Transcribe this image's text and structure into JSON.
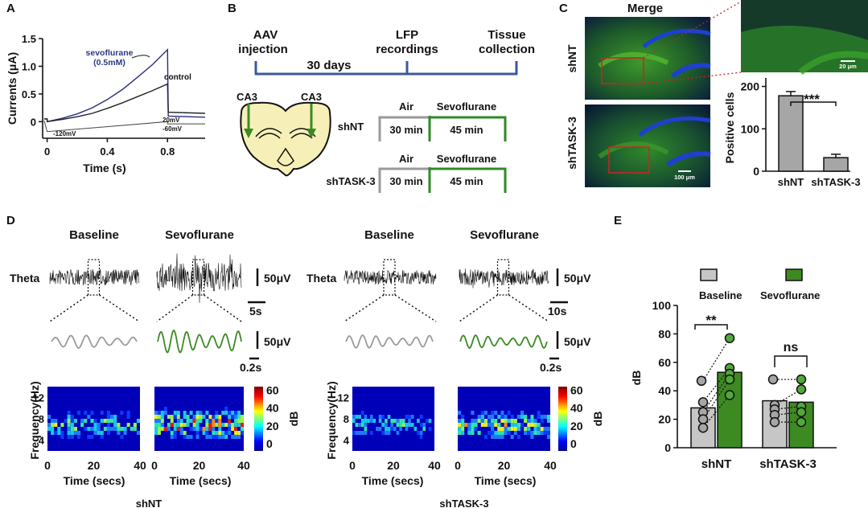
{
  "colors": {
    "baseline_bar": "#c6c6c6",
    "sevo_bar": "#3d8a22",
    "navy": "#2b3a80",
    "sevo_trace": "#2a2d7c",
    "timeline": "#3a5a9a",
    "air_box": "#9a9a9a",
    "sevo_box": "#2f8a25",
    "fluor_green": "#3aa02a",
    "fluor_blue": "#1f3fd0",
    "red_roi": "#d42020",
    "gray_ctrl": "#c0c0c0",
    "cell_bar": "#a6a6a6"
  },
  "panels": {
    "A": {
      "letter": "A",
      "ylabel": "Currents (μA)",
      "xlabel": "Time (s)",
      "yticks": [
        "1.5",
        "1.0",
        "0.5",
        "0"
      ],
      "xticks": [
        "0",
        "0.4",
        "0.8"
      ],
      "sevo_label_1": "sevoflurane",
      "sevo_label_2": "(0.5mM)",
      "control_label": "control",
      "v_hold": "-120mV",
      "v_20": "20mV",
      "v_m60": "-60mV"
    },
    "B": {
      "letter": "B",
      "aav_1": "AAV",
      "aav_2": "injection",
      "lfp_1": "LFP",
      "lfp_2": "recordings",
      "tissue_1": "Tissue",
      "tissue_2": "collection",
      "days": "30 days",
      "ca3_left": "CA3",
      "ca3_right": "CA3",
      "group1": "shNT",
      "group2": "shTASK-3",
      "air": "Air",
      "sevo": "Sevoflurane",
      "air_time": "30 min",
      "sevo_time": "45 min"
    },
    "C": {
      "letter": "C",
      "merge": "Merge",
      "row1": "shNT",
      "row2": "shTASK-3",
      "scale_inset": "20 μm",
      "scale_main": "100 μm",
      "chart_ylabel": "Positive cells",
      "chart_yticks": [
        "200",
        "100",
        "0"
      ],
      "sig": "***"
    },
    "D": {
      "letter": "D",
      "baseline": "Baseline",
      "sevo": "Sevoflurane",
      "theta": "Theta",
      "scale_uv": "50μV",
      "scale_5s": "5s",
      "scale_10s": "10s",
      "scale_02s": "0.2s",
      "freq_ylabel": "Frequency(Hz)",
      "freq_yticks": [
        "12",
        "8",
        "4"
      ],
      "time_xlabel": "Time (secs)",
      "time_xticks": [
        "0",
        "20",
        "40"
      ],
      "cbar_ticks": [
        "60",
        "40",
        "20",
        "0"
      ],
      "cbar_label": "dB",
      "group_left": "shNT",
      "group_right": "shTASK-3"
    },
    "E": {
      "letter": "E",
      "legend_baseline": "Baseline",
      "legend_sevo": "Sevoflurane",
      "ylabel": "dB",
      "yticks": [
        "100",
        "80",
        "60",
        "40",
        "20",
        "0"
      ],
      "sig_1": "**",
      "sig_2": "ns"
    }
  },
  "chart_data": [
    {
      "type": "line",
      "title": "",
      "xlabel": "Time (s)",
      "ylabel": "Currents (μA)",
      "xlim": [
        -0.03,
        1.05
      ],
      "ylim": [
        -0.3,
        1.5
      ],
      "x": [
        0,
        0.1,
        0.2,
        0.3,
        0.4,
        0.5,
        0.6,
        0.7,
        0.8
      ],
      "series": [
        {
          "name": "sevoflurane (0.5mM)",
          "values": [
            0.0,
            0.06,
            0.14,
            0.25,
            0.4,
            0.58,
            0.8,
            1.03,
            1.3
          ]
        },
        {
          "name": "control",
          "values": [
            0.0,
            0.04,
            0.09,
            0.15,
            0.24,
            0.34,
            0.45,
            0.56,
            0.68
          ]
        }
      ]
    },
    {
      "type": "bar",
      "title": "",
      "xlabel": "",
      "ylabel": "Positive cells",
      "categories": [
        "shNT",
        "shTASK-3"
      ],
      "values": [
        178,
        32
      ],
      "errors": [
        10,
        8
      ],
      "ylim": [
        0,
        220
      ]
    },
    {
      "type": "bar",
      "title": "",
      "xlabel": "",
      "ylabel": "dB",
      "ylim": [
        0,
        100
      ],
      "categories": [
        "shNT",
        "shTASK-3"
      ],
      "series": [
        {
          "name": "Baseline",
          "values": [
            28,
            33
          ]
        },
        {
          "name": "Sevoflurane",
          "values": [
            53,
            32
          ]
        }
      ],
      "points": {
        "shNT_baseline": [
          47,
          32,
          25,
          20,
          14
        ],
        "shNT_sevoflurane": [
          77,
          56,
          52,
          48,
          37
        ],
        "shTASK3_baseline": [
          48,
          30,
          27,
          23,
          18
        ],
        "shTASK3_sevoflurane": [
          48,
          41,
          29,
          25,
          18
        ]
      }
    }
  ]
}
